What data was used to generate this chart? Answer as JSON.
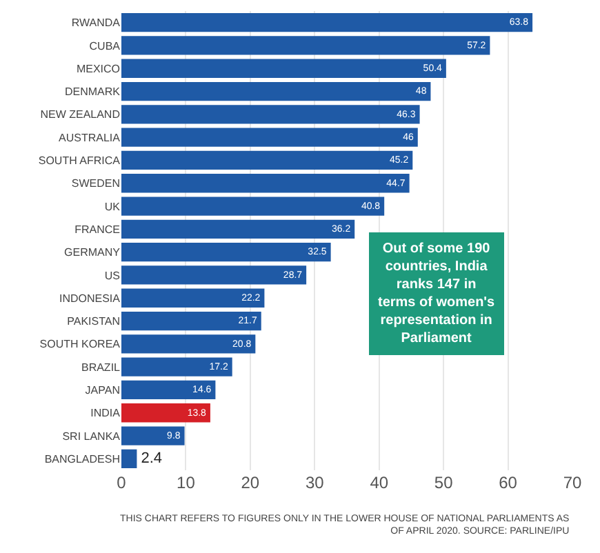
{
  "chart_data": {
    "type": "bar",
    "orientation": "horizontal",
    "categories": [
      "RWANDA",
      "CUBA",
      "MEXICO",
      "DENMARK",
      "NEW ZEALAND",
      "AUSTRALIA",
      "SOUTH AFRICA",
      "SWEDEN",
      "UK",
      "FRANCE",
      "GERMANY",
      "US",
      "INDONESIA",
      "PAKISTAN",
      "SOUTH KOREA",
      "BRAZIL",
      "JAPAN",
      "INDIA",
      "SRI LANKA",
      "BANGLADESH"
    ],
    "values": [
      63.8,
      57.2,
      50.4,
      48,
      46.3,
      46,
      45.2,
      44.7,
      40.8,
      36.2,
      32.5,
      28.7,
      22.2,
      21.7,
      20.8,
      17.2,
      14.6,
      13.8,
      9.8,
      2.4
    ],
    "colors": [
      "#1f5aa6",
      "#1f5aa6",
      "#1f5aa6",
      "#1f5aa6",
      "#1f5aa6",
      "#1f5aa6",
      "#1f5aa6",
      "#1f5aa6",
      "#1f5aa6",
      "#1f5aa6",
      "#1f5aa6",
      "#1f5aa6",
      "#1f5aa6",
      "#1f5aa6",
      "#1f5aa6",
      "#1f5aa6",
      "#1f5aa6",
      "#d62027",
      "#1f5aa6",
      "#1f5aa6"
    ],
    "xlim": [
      0,
      70
    ],
    "xticks": [
      0,
      10,
      20,
      30,
      40,
      50,
      60,
      70
    ],
    "grid": "x",
    "data_labels": true,
    "annotations": [
      "Out of some 190 countries, India ranks 147 in terms of women's representation in Parliament",
      "THIS CHART REFERS TO FIGURES ONLY IN THE LOWER HOUSE OF NATIONAL PARLIAMENTS AS OF APRIL 2020. SOURCE: PARLINE/IPU"
    ]
  }
}
